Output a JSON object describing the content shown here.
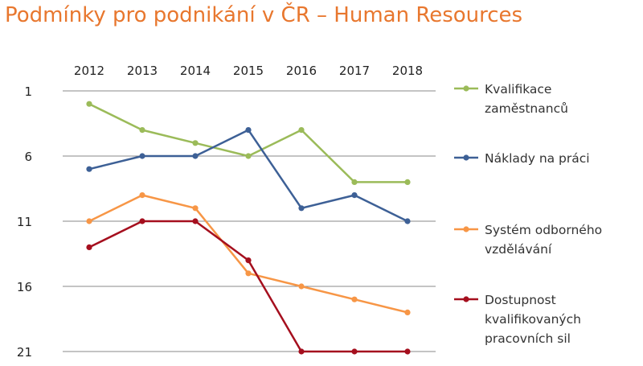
{
  "title": "Podmínky pro podnikání v ČR – Human Resources",
  "chart_data": {
    "type": "line",
    "categories": [
      "2012",
      "2013",
      "2014",
      "2015",
      "2016",
      "2017",
      "2018"
    ],
    "y_ticks": [
      "1",
      "6",
      "11",
      "16",
      "21"
    ],
    "ylim": [
      1,
      21
    ],
    "y_inverted": true,
    "x_axis_position": "top",
    "grid": "horizontal",
    "legend_position": "right",
    "series": [
      {
        "name": "Kvalifikace zaměstnanců",
        "name_lines": [
          "Kvalifikace",
          "zaměstnanců"
        ],
        "color": "#9bbb59",
        "values": [
          2,
          4,
          5,
          6,
          4,
          8,
          8
        ]
      },
      {
        "name": "Náklady na práci",
        "name_lines": [
          "Náklady na práci"
        ],
        "color": "#3d6096",
        "values": [
          7,
          6,
          6,
          4,
          10,
          9,
          11
        ]
      },
      {
        "name": "Systém odborného vzdělávání",
        "name_lines": [
          "Systém odborného",
          "vzdělávání"
        ],
        "color": "#f79646",
        "values": [
          11,
          9,
          10,
          15,
          16,
          17,
          18
        ]
      },
      {
        "name": "Dostupnost kvalifikovaných pracovních sil",
        "name_lines": [
          "Dostupnost",
          "kvalifikovaných",
          "pracovních sil"
        ],
        "color": "#a50f1e",
        "values": [
          13,
          11,
          11,
          14,
          21,
          21,
          21
        ]
      }
    ]
  }
}
